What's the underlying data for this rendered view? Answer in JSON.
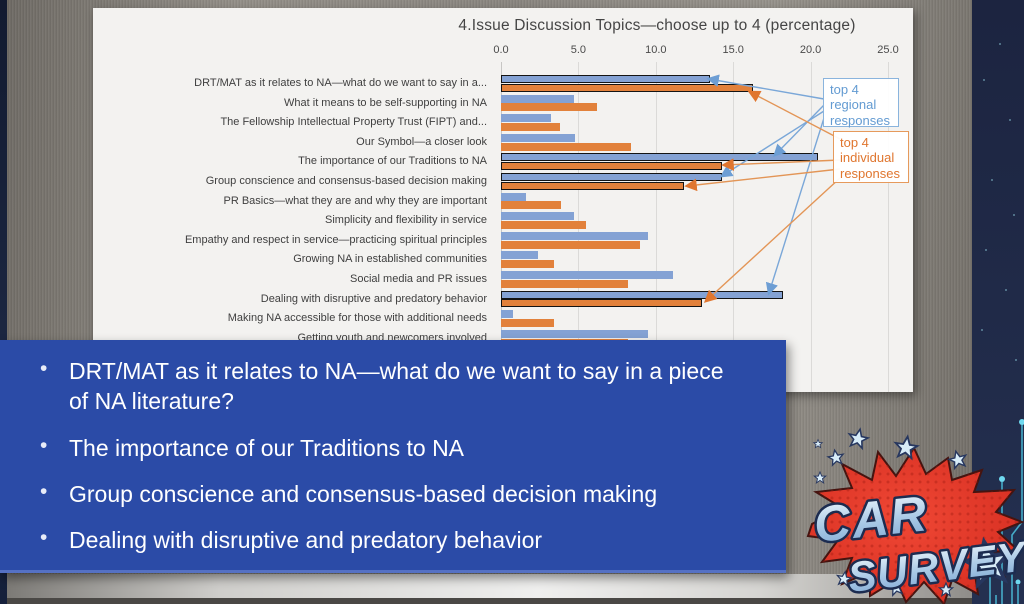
{
  "chart_data": {
    "type": "bar",
    "orientation": "horizontal",
    "title": "4.Issue Discussion Topics—choose up to 4 (percentage)",
    "xlabel": "",
    "ylabel": "",
    "xlim": [
      0,
      25
    ],
    "x_ticks": [
      0.0,
      5.0,
      10.0,
      15.0,
      20.0,
      25.0
    ],
    "grid": true,
    "categories": [
      "DRT/MAT as it relates to NA—what do we want to say in a...",
      "What it means to be self-supporting in NA",
      "The Fellowship Intellectual Property Trust (FIPT) and...",
      "Our Symbol—a closer look",
      "The importance of our Traditions to NA",
      "Group conscience and consensus-based decision making",
      "PR Basics—what they are and why they are important",
      "Simplicity and flexibility in service",
      "Empathy and respect in service—practicing spiritual principles",
      "Growing NA in established communities",
      "Social media and PR issues",
      "Dealing with disruptive and predatory behavior",
      "Making NA accessible for those with additional needs",
      "Getting youth and newcomers involved"
    ],
    "series": [
      {
        "name": "regional responses",
        "color": "#84a2d4",
        "values": [
          13.5,
          4.7,
          3.2,
          4.8,
          20.5,
          14.3,
          1.6,
          4.7,
          9.5,
          2.4,
          11.1,
          18.2,
          0.8,
          9.5
        ]
      },
      {
        "name": "individual responses",
        "color": "#e2813b",
        "values": [
          16.3,
          6.2,
          3.8,
          8.4,
          14.3,
          11.8,
          3.9,
          5.5,
          9.0,
          3.4,
          8.2,
          13.0,
          3.4,
          8.2
        ]
      }
    ],
    "highlighted_indices": [
      0,
      4,
      5,
      11
    ],
    "legend_position": "right"
  },
  "chart": {
    "legend": [
      {
        "label": "top 4 regional responses",
        "color": "#639bd2"
      },
      {
        "label": "top 4 individual responses",
        "color": "#e0762f"
      }
    ]
  },
  "overlay": {
    "bullets": [
      "DRT/MAT as it relates to NA—what do we want to say in a piece of NA literature?",
      "The importance of our Traditions to NA",
      "Group conscience and consensus-based decision making",
      "Dealing with disruptive and predatory behavior"
    ]
  },
  "logo": {
    "line1": "CAR",
    "line2": "SURVEY"
  }
}
